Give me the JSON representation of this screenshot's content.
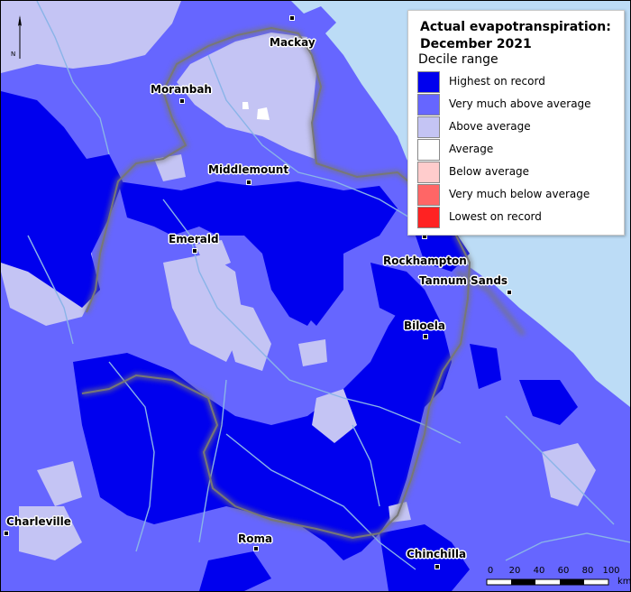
{
  "legend": {
    "title_line1": "Actual evapotranspiration:",
    "title_line2": "December 2021",
    "subtitle": "Decile range",
    "items": [
      {
        "label": "Highest on record",
        "color": "#0000ee"
      },
      {
        "label": "Very much above average",
        "color": "#6666ff"
      },
      {
        "label": "Above average",
        "color": "#c4c4f4"
      },
      {
        "label": "Average",
        "color": "#ffffff"
      },
      {
        "label": "Below average",
        "color": "#ffcccc"
      },
      {
        "label": "Very much below average",
        "color": "#ff6666"
      },
      {
        "label": "Lowest on record",
        "color": "#ff2222"
      }
    ]
  },
  "towns": {
    "mackay": "Mackay",
    "moranbah": "Moranbah",
    "middlemount": "Middlemount",
    "emerald": "Emerald",
    "rockhampton": "Rockhampton",
    "tannum_sands": "Tannum Sands",
    "biloela": "Biloela",
    "charleville": "Charleville",
    "roma": "Roma",
    "chinchilla": "Chinchilla"
  },
  "north_arrow": {
    "label": "N"
  },
  "scale_bar": {
    "ticks": [
      "0",
      "20",
      "40",
      "60",
      "80",
      "100"
    ],
    "unit": "km"
  },
  "colors": {
    "highest": "#0000ee",
    "very_much_above": "#6666ff",
    "above": "#c4c4f4",
    "ocean": "#bcdcf6",
    "river": "#8ab4e8",
    "boundary": "#888888"
  }
}
